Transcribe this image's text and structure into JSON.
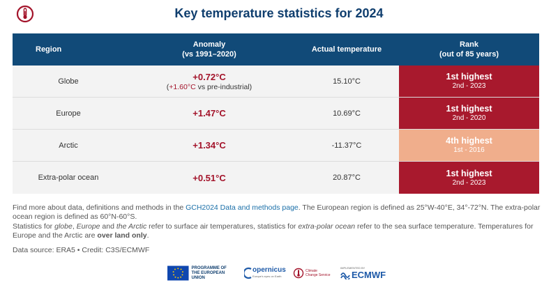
{
  "title": "Key temperature statistics for 2024",
  "colors": {
    "header_bg": "#114a78",
    "title": "#0f3e6e",
    "anomaly": "#a3132a",
    "rank_1st": "#a8192d",
    "rank_4th": "#f0ae8c"
  },
  "table": {
    "headers": {
      "region": "Region",
      "anomaly": "Anomaly",
      "anomaly_period": "(vs 1991–2020)",
      "actual": "Actual temperature",
      "rank": "Rank",
      "rank_sub": "(out of 85 years)"
    },
    "rows": [
      {
        "region": "Globe",
        "anomaly": "+0.72°C",
        "anomaly_note_value": "+1.60°C",
        "anomaly_note_text": " vs pre-industrial)",
        "anomaly_note_open": "(",
        "actual": "15.10°C",
        "rank": "1st highest",
        "rank_prev": "2nd - 2023",
        "rank_color": "#a8192d"
      },
      {
        "region": "Europe",
        "anomaly": "+1.47°C",
        "actual": "10.69°C",
        "rank": "1st highest",
        "rank_prev": "2nd - 2020",
        "rank_color": "#a8192d"
      },
      {
        "region": "Arctic",
        "anomaly": "+1.34°C",
        "actual": "-11.37°C",
        "rank": "4th highest",
        "rank_prev": "1st - 2016",
        "rank_color": "#f0ae8c"
      },
      {
        "region": "Extra-polar ocean",
        "anomaly": "+0.51°C",
        "actual": "20.87°C",
        "rank": "1st highest",
        "rank_prev": "2nd - 2023",
        "rank_color": "#a8192d"
      }
    ]
  },
  "notes": {
    "p1_before": "Find more about data, definitions and methods in the ",
    "p1_link": "GCH2024 Data and methods page",
    "p1_after": ". The European region is defined as 25°W-40°E, 34°-72°N. The extra-polar ocean region is defined as 60°N-60°S.",
    "p2_a": "Statistics for ",
    "p2_globe": "globe",
    "p2_b": ", ",
    "p2_europe": "Europe",
    "p2_c": " and ",
    "p2_arctic": "the Arctic",
    "p2_d": " refer to surface air temperatures, statistics for ",
    "p2_ocean": "extra-polar ocean",
    "p2_e": " refer to the sea surface temperature. Temperatures for Europe and the Arctic are ",
    "p2_bold": "over land only",
    "p2_f": "."
  },
  "source": "Data source: ERA5 • Credit: C3S/ECMWF",
  "logos": {
    "eu_line1": "PROGRAMME OF",
    "eu_line2": "THE EUROPEAN UNION",
    "copernicus": "opernicus",
    "copernicus_sub": "Europe's eyes on Earth",
    "c3s_line1": "Climate",
    "c3s_line2": "Change Service",
    "ecmwf_sub": "IMPLEMENTED BY",
    "ecmwf": "ECMWF"
  }
}
